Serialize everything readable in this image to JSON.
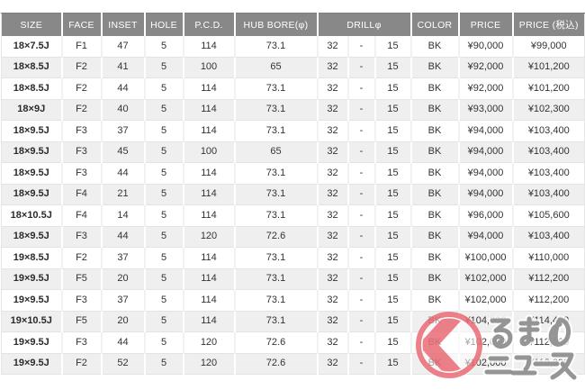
{
  "table": {
    "cell_keys": [
      "size",
      "face",
      "inset",
      "hole",
      "pcd",
      "hub_bore",
      "drill_min",
      "drill_sep",
      "drill_max",
      "color",
      "price",
      "price_tax"
    ],
    "columns": [
      {
        "key": "size",
        "label": "SIZE"
      },
      {
        "key": "face",
        "label": "FACE"
      },
      {
        "key": "inset",
        "label": "INSET"
      },
      {
        "key": "hole",
        "label": "HOLE"
      },
      {
        "key": "pcd",
        "label": "P.C.D."
      },
      {
        "key": "hub_bore",
        "label": "HUB BORE(φ)"
      },
      {
        "key": "drill",
        "label": "DRILLφ",
        "colspan": 3
      },
      {
        "key": "color",
        "label": "COLOR"
      },
      {
        "key": "price",
        "label": "PRICE"
      },
      {
        "key": "price_tax",
        "label": "PRICE (税込)"
      }
    ],
    "rows": [
      [
        "18×7.5J",
        "F1",
        "47",
        "5",
        "114",
        "73.1",
        "32",
        "-",
        "15",
        "BK",
        "¥90,000",
        "¥99,000"
      ],
      [
        "18×8.5J",
        "F2",
        "41",
        "5",
        "100",
        "65",
        "32",
        "-",
        "15",
        "BK",
        "¥92,000",
        "¥101,200"
      ],
      [
        "18×8.5J",
        "F2",
        "44",
        "5",
        "114",
        "73.1",
        "32",
        "-",
        "15",
        "BK",
        "¥92,000",
        "¥101,200"
      ],
      [
        "18×9J",
        "F2",
        "40",
        "5",
        "114",
        "73.1",
        "32",
        "-",
        "15",
        "BK",
        "¥93,000",
        "¥102,300"
      ],
      [
        "18×9.5J",
        "F3",
        "37",
        "5",
        "114",
        "73.1",
        "32",
        "-",
        "15",
        "BK",
        "¥94,000",
        "¥103,400"
      ],
      [
        "18×9.5J",
        "F3",
        "45",
        "5",
        "100",
        "65",
        "32",
        "-",
        "15",
        "BK",
        "¥94,000",
        "¥103,400"
      ],
      [
        "18×9.5J",
        "F3",
        "44",
        "5",
        "114",
        "73.1",
        "32",
        "-",
        "15",
        "BK",
        "¥94,000",
        "¥103,400"
      ],
      [
        "18×9.5J",
        "F4",
        "21",
        "5",
        "114",
        "73.1",
        "32",
        "-",
        "15",
        "BK",
        "¥94,000",
        "¥103,400"
      ],
      [
        "18×10.5J",
        "F4",
        "14",
        "5",
        "114",
        "73.1",
        "32",
        "-",
        "15",
        "BK",
        "¥96,000",
        "¥105,600"
      ],
      [
        "18×9.5J",
        "F3",
        "44",
        "5",
        "120",
        "72.6",
        "32",
        "-",
        "15",
        "BK",
        "¥94,000",
        "¥103,400"
      ],
      [
        "19×8.5J",
        "F2",
        "37",
        "5",
        "114",
        "73.1",
        "32",
        "-",
        "15",
        "BK",
        "¥100,000",
        "¥110,000"
      ],
      [
        "19×9.5J",
        "F5",
        "20",
        "5",
        "114",
        "73.1",
        "32",
        "-",
        "15",
        "BK",
        "¥102,000",
        "¥112,200"
      ],
      [
        "19×9.5J",
        "F3",
        "37",
        "5",
        "114",
        "73.1",
        "32",
        "-",
        "15",
        "BK",
        "¥102,000",
        "¥112,200"
      ],
      [
        "19×10.5J",
        "F5",
        "20",
        "5",
        "114",
        "73.1",
        "32",
        "-",
        "15",
        "BK",
        "¥104,000",
        "¥114,400"
      ],
      [
        "19×9.5J",
        "F3",
        "44",
        "5",
        "120",
        "72.6",
        "32",
        "-",
        "15",
        "BK",
        "¥102,000",
        "¥112,200"
      ],
      [
        "19×9.5J",
        "F2",
        "52",
        "5",
        "120",
        "72.6",
        "32",
        "-",
        "15",
        "BK",
        "¥102,000",
        "¥112,200"
      ]
    ]
  },
  "watermark": {
    "mark_glyph": "く",
    "line1": "るまの",
    "line2": "ニュース",
    "accent_color": "#e4505c",
    "text_color": "#8c8c8c"
  },
  "colors": {
    "header_bg": "#888888",
    "header_text": "#ffffff",
    "row_alt_bg": "#efefef",
    "cell_text": "#333333",
    "border": "#e3e3e3",
    "page_bg": "#ffffff"
  }
}
